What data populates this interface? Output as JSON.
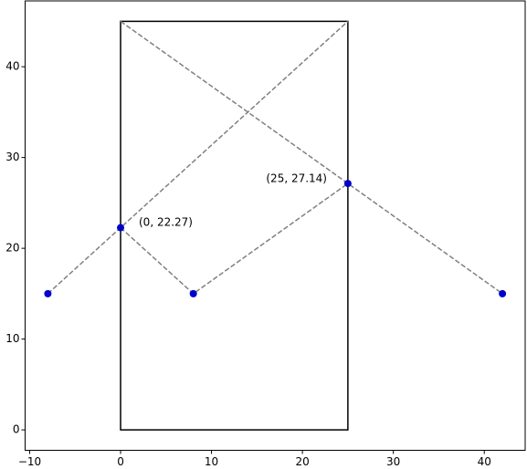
{
  "chart_data": {
    "type": "scatter",
    "points": {
      "x": [
        -8,
        0,
        8,
        25,
        42
      ],
      "y": [
        15,
        22.27,
        15,
        27.14,
        15
      ],
      "color": "#0000cc"
    },
    "lines": [
      {
        "x": [
          -8,
          25
        ],
        "y": [
          15,
          45
        ],
        "color": "gray"
      },
      {
        "x": [
          0,
          42
        ],
        "y": [
          45,
          15
        ],
        "color": "gray"
      },
      {
        "x": [
          0,
          8,
          25
        ],
        "y": [
          22.27,
          15,
          27.14
        ],
        "color": "gray"
      }
    ],
    "rectangle": {
      "x": [
        0,
        25
      ],
      "y": [
        0,
        45
      ],
      "color": "black"
    },
    "annotations": [
      "(0, 22.27)",
      "(25, 27.14)"
    ],
    "xlim": [
      -10.5,
      44.5
    ],
    "ylim": [
      -2.25,
      47.25
    ],
    "xticks": [
      {
        "value": -10,
        "label": "−10"
      },
      0,
      10,
      20,
      30,
      40
    ],
    "yticks": [
      0,
      10,
      20,
      30,
      40
    ],
    "grid": false
  }
}
